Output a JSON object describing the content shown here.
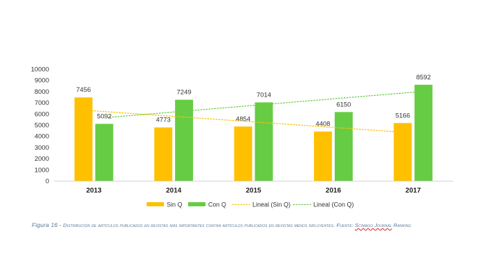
{
  "chart_data": {
    "type": "bar",
    "categories": [
      "2013",
      "2014",
      "2015",
      "2016",
      "2017"
    ],
    "series": [
      {
        "name": "Sin Q",
        "values": [
          7456,
          4773,
          4854,
          4408,
          5166
        ],
        "color": "#FFC000"
      },
      {
        "name": "Con Q",
        "values": [
          5092,
          7249,
          7014,
          6150,
          8592
        ],
        "color": "#66CC44"
      }
    ],
    "trendlines": [
      {
        "name": "Lineal (Sin Q)",
        "of": "Sin Q",
        "type": "linear",
        "style": "dotted",
        "color": "#FFC000"
      },
      {
        "name": "Lineal (Con Q)",
        "of": "Con Q",
        "type": "linear",
        "style": "dotted",
        "color": "#66CC44"
      }
    ],
    "ylim": [
      0,
      10000
    ],
    "yticks": [
      0,
      1000,
      2000,
      3000,
      4000,
      5000,
      6000,
      7000,
      8000,
      9000,
      10000
    ],
    "data_labels": true,
    "legend": "bottom",
    "grid": false,
    "title": "",
    "xlabel": "",
    "ylabel": ""
  },
  "caption": {
    "lead": "Figura 16 - ",
    "body": "Distribución de artículos publicados en revistas más importantes contra artículos publicados en revistas menos influyentes. Fuente: ",
    "source_underlined": "Scimago Journal",
    "source_tail": " Ranking"
  }
}
